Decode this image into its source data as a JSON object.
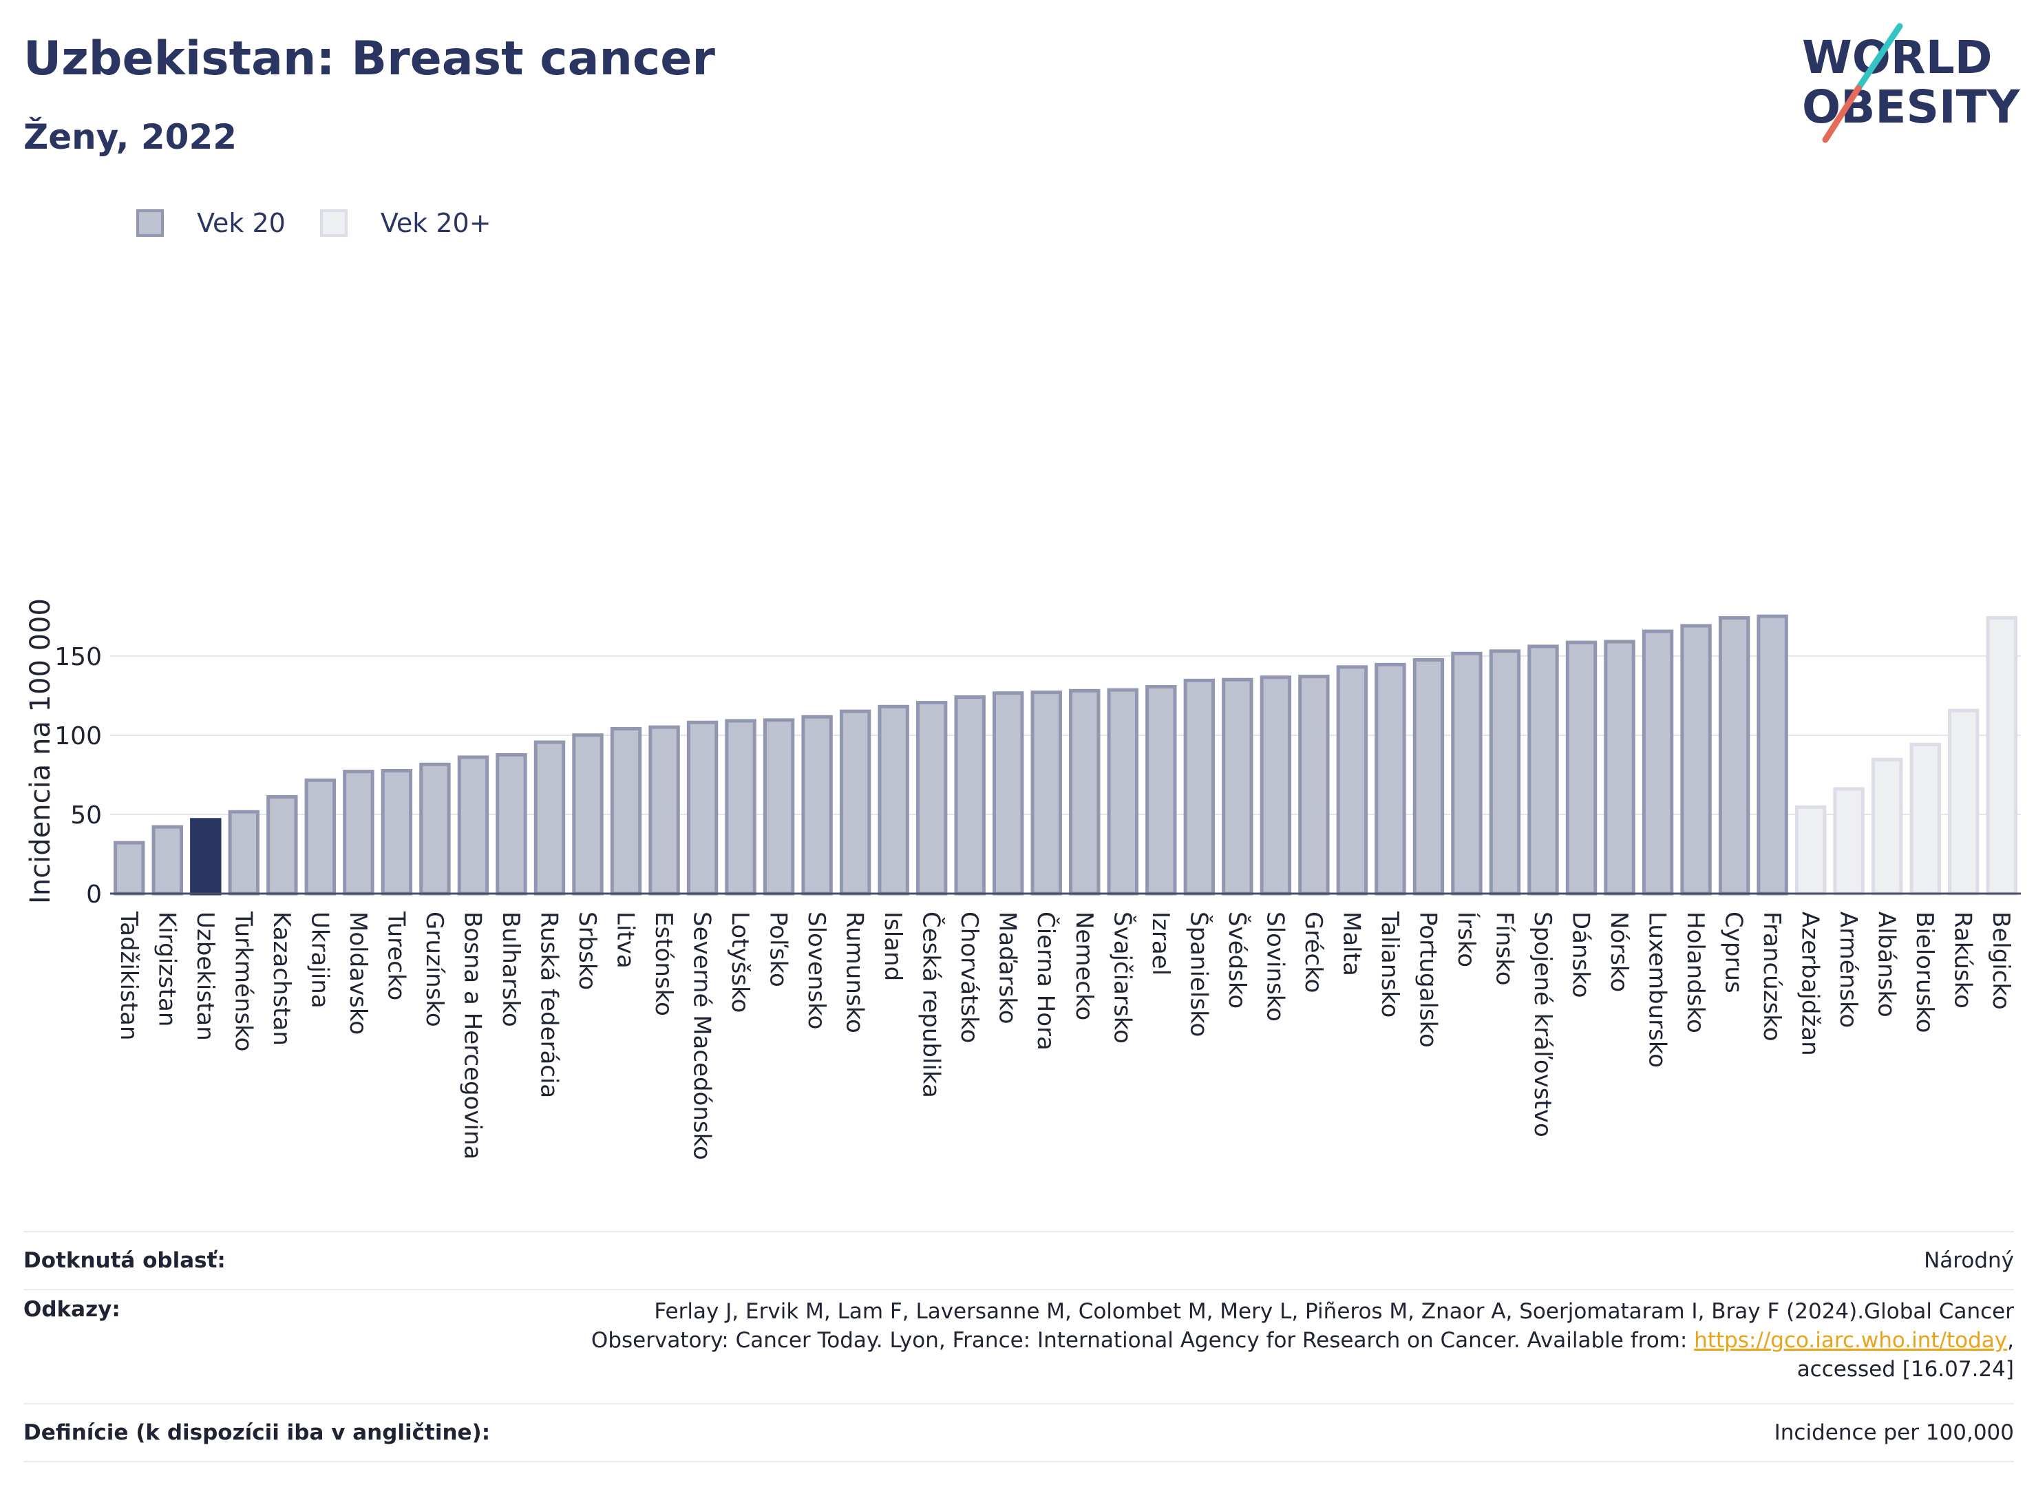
{
  "header": {
    "title": "Uzbekistan: Breast cancer",
    "subtitle": "Ženy, 2022",
    "logo_line1": "WORLD",
    "logo_line2": "OBESITY"
  },
  "legend": {
    "items": [
      {
        "label": "Vek 20",
        "color": "#bec1cf",
        "border": "#9297b1"
      },
      {
        "label": "Vek 20+",
        "color": "#eeeff3",
        "border": "#dcdde6"
      }
    ]
  },
  "colors": {
    "highlight": "#2b3561",
    "primary_fill": "#bec1cf",
    "primary_border": "#9297b1",
    "secondary_fill": "#eeeff3",
    "secondary_border": "#dcdde6",
    "grid": "#e4e6ee",
    "axis": "#4a4f66",
    "link": "#e9a41a"
  },
  "chart_data": {
    "type": "bar",
    "title": "Uzbekistan: Breast cancer",
    "subtitle": "Ženy, 2022",
    "ylabel": "Incidencia na 100 000",
    "xlabel": "",
    "ylim": [
      0,
      180
    ],
    "yticks": [
      0,
      50,
      100,
      150
    ],
    "grid": true,
    "legend_position": "top-left",
    "highlight_category": "Uzbekistan",
    "series": [
      {
        "name": "Vek 20",
        "categories": [
          "Tadžikistan",
          "Kirgizstan",
          "Uzbekistan",
          "Turkménsko",
          "Kazachstan",
          "Ukrajina",
          "Moldavsko",
          "Turecko",
          "Gruzínsko",
          "Bosna a Hercegovina",
          "Bulharsko",
          "Ruská federácia",
          "Srbsko",
          "Litva",
          "Estónsko",
          "Severné Macedónsko",
          "Lotyšsko",
          "Poľsko",
          "Slovensko",
          "Rumunsko",
          "Island",
          "Česká republika",
          "Chorvátsko",
          "Maďarsko",
          "Čierna Hora",
          "Nemecko",
          "Švajčiarsko",
          "Izrael",
          "Španielsko",
          "Švédsko",
          "Slovinsko",
          "Grécko",
          "Malta",
          "Taliansko",
          "Portugalsko",
          "Írsko",
          "Fínsko",
          "Spojené kráľovstvo",
          "Dánsko",
          "Nórsko",
          "Luxembursko",
          "Holandsko",
          "Cyprus",
          "Francúzsko"
        ],
        "values": [
          33,
          43,
          47.5,
          52.5,
          62,
          72.5,
          78,
          78.5,
          82.5,
          87,
          88.5,
          96.5,
          101,
          105,
          106,
          109,
          110,
          110.5,
          112.5,
          116,
          119,
          121.5,
          125,
          127.5,
          128,
          129,
          129.5,
          131.5,
          135.5,
          136,
          137.5,
          138,
          144,
          145.5,
          148.5,
          152.5,
          154,
          157,
          159.5,
          160,
          166.5,
          170,
          175,
          176
        ]
      },
      {
        "name": "Vek 20+",
        "categories": [
          "Azerbajdžan",
          "Arménsko",
          "Albánsko",
          "Bielorusko",
          "Rakúsko",
          "Belgicko"
        ],
        "values": [
          55.5,
          67,
          85.5,
          95,
          116.5,
          175
        ]
      }
    ]
  },
  "info": {
    "area_label": "Dotknutá oblasť:",
    "area_value": "Národný",
    "refs_label": "Odkazy:",
    "refs_line1": "Ferlay J, Ervik M, Lam F, Laversanne M, Colombet M, Mery L, Piñeros M, Znaor A, Soerjomataram I, Bray F (2024).Global Cancer",
    "refs_line2_pre": "Observatory: Cancer Today. Lyon, France: International Agency for Research on Cancer. Available from: ",
    "refs_link": "https://gco.iarc.who.int/today",
    "refs_line2_post": ",",
    "refs_line3": "accessed [16.07.24]",
    "def_label": "Definície (k dispozícii iba v angličtine):",
    "def_value": "Incidence per 100,000"
  }
}
